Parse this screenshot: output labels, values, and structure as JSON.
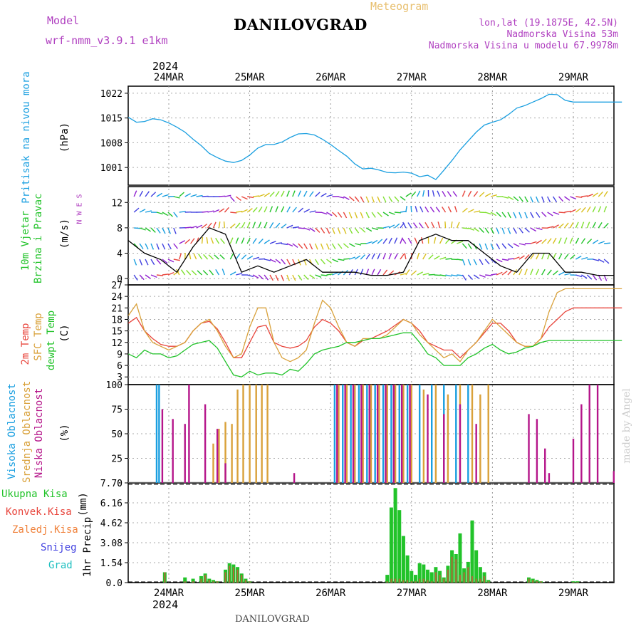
{
  "header": {
    "model_label": "Model",
    "model_name": "wrf-nmm_v3.9.1 e1km",
    "title": "DANILOVGRAD",
    "subtitle": "Meteogram",
    "lonlat": "lon,lat (19.1875E, 42.5N)",
    "altitude": "Nadmorska Visina 53m",
    "model_altitude": "Nadmorska Visina u modelu 67.9978m",
    "footer": "DANILOVGRAD",
    "credit": "made by Angel",
    "year_top": "2024",
    "year_bottom": "2024"
  },
  "colors": {
    "pressure": "#1a9fe0",
    "temp2m": "#e8453c",
    "sfctemp": "#d9a13a",
    "dewpt": "#22c32a",
    "cloud_high": "#1a9fe0",
    "cloud_mid": "#d9a13a",
    "cloud_low": "#b5158a",
    "precip_total": "#22c32a",
    "precip_conv": "#e8453c",
    "precip_frozen": "#f0813a",
    "precip_snow": "#4040e0",
    "precip_grad": "#20c0c0",
    "wind_label": "#22c32a",
    "wind_dir_label": "#b040c0"
  },
  "chart_data": [
    {
      "type": "line",
      "name": "pressure",
      "ylabel": "Pritisak na nivou mora",
      "unit": "(hPa)",
      "yticks": [
        1001,
        1008,
        1015,
        1022
      ],
      "ylim": [
        996,
        1024
      ],
      "x_days": [
        "24MAR",
        "25MAR",
        "26MAR",
        "27MAR",
        "28MAR",
        "29MAR"
      ],
      "x": [
        -0.5,
        -0.4,
        -0.3,
        -0.2,
        -0.1,
        0,
        0.1,
        0.2,
        0.3,
        0.4,
        0.5,
        0.6,
        0.7,
        0.8,
        0.9,
        1,
        1.1,
        1.2,
        1.3,
        1.4,
        1.5,
        1.6,
        1.7,
        1.8,
        1.9,
        2,
        2.1,
        2.2,
        2.3,
        2.4,
        2.5,
        2.6,
        2.7,
        2.8,
        2.9,
        3,
        3.1,
        3.2,
        3.3,
        3.4,
        3.5,
        3.6,
        3.7,
        3.8,
        3.9,
        4,
        4.1,
        4.2,
        4.3,
        4.4,
        4.5,
        4.6,
        4.7,
        4.8,
        4.9,
        5,
        5.1,
        5.2,
        5.3,
        5.4,
        5.5,
        5.6
      ],
      "values": [
        1015.2,
        1013.8,
        1014.0,
        1014.8,
        1014.5,
        1013.6,
        1012.4,
        1011.0,
        1009.0,
        1007.2,
        1005.0,
        1003.8,
        1002.8,
        1002.4,
        1003.0,
        1004.5,
        1006.5,
        1007.5,
        1007.5,
        1008.2,
        1009.5,
        1010.5,
        1010.6,
        1010.2,
        1009.0,
        1007.5,
        1005.8,
        1004.2,
        1002.0,
        1000.6,
        1000.8,
        1000.3,
        999.6,
        999.5,
        999.7,
        999.4,
        998.4,
        998.8,
        997.6,
        1000.2,
        1003.0,
        1006.0,
        1008.5,
        1011.0,
        1013.0,
        1013.8,
        1014.5,
        1016.0,
        1017.8,
        1018.5,
        1019.5,
        1020.5,
        1021.7,
        1021.6,
        1020.0,
        1019.5,
        1019.5,
        1019.5,
        1019.5,
        1019.5,
        1019.5,
        1019.5
      ]
    },
    {
      "type": "line",
      "name": "wind",
      "ylabel": "10m Vjetar",
      "ylabel2": "Brzina i Pravac",
      "unit": "(m/s)",
      "compass": "N W E S",
      "yticks": [
        0,
        4,
        8,
        12
      ],
      "ylim": [
        -1,
        14.5
      ],
      "x": [
        -0.5,
        -0.3,
        -0.1,
        0.1,
        0.3,
        0.5,
        0.7,
        0.9,
        1.1,
        1.3,
        1.5,
        1.7,
        1.9,
        2.1,
        2.3,
        2.5,
        2.7,
        2.9,
        3.1,
        3.3,
        3.5,
        3.7,
        3.9,
        4.1,
        4.3,
        4.5,
        4.7,
        4.9,
        5.1,
        5.3,
        5.5
      ],
      "values": [
        6,
        4,
        3,
        1,
        5,
        8,
        7,
        1,
        2,
        1,
        2,
        3,
        1,
        1,
        1,
        0.5,
        0.5,
        1,
        6,
        7,
        6,
        6,
        4,
        2,
        1,
        4,
        4,
        1,
        1,
        0.5,
        0.5
      ]
    },
    {
      "type": "line",
      "name": "temperature",
      "ylabel": "2m Temp",
      "ylabel2": "SFC Temp",
      "ylabel3": "dewpt Temp",
      "unit": "(C)",
      "yticks": [
        3,
        6,
        9,
        12,
        15,
        18,
        21,
        24,
        27
      ],
      "ylim": [
        1,
        27
      ],
      "x": [
        -0.5,
        -0.4,
        -0.3,
        -0.2,
        -0.1,
        0,
        0.1,
        0.2,
        0.3,
        0.4,
        0.5,
        0.6,
        0.7,
        0.8,
        0.9,
        1,
        1.1,
        1.2,
        1.3,
        1.4,
        1.5,
        1.6,
        1.7,
        1.8,
        1.9,
        2,
        2.1,
        2.2,
        2.3,
        2.4,
        2.5,
        2.6,
        2.7,
        2.8,
        2.9,
        3,
        3.1,
        3.2,
        3.3,
        3.4,
        3.5,
        3.6,
        3.7,
        3.8,
        3.9,
        4,
        4.1,
        4.2,
        4.3,
        4.4,
        4.5,
        4.6,
        4.7,
        4.8,
        4.9,
        5,
        5.1,
        5.2,
        5.3,
        5.4,
        5.5,
        5.6
      ],
      "series": [
        {
          "name": "2m Temp",
          "values": [
            17,
            18.5,
            15,
            13,
            11.5,
            11,
            11,
            12,
            15,
            17,
            17.5,
            15.5,
            12,
            8,
            8,
            12,
            16,
            16.5,
            12,
            11,
            10.5,
            11,
            12.5,
            16,
            18,
            17,
            15,
            12,
            11,
            12.5,
            13,
            14,
            15,
            16.5,
            18,
            17,
            15,
            12,
            11,
            10,
            10,
            8,
            10,
            12,
            14.5,
            17,
            17,
            15,
            12,
            11,
            11,
            13,
            16,
            18,
            20,
            21,
            21,
            21,
            21,
            21,
            21,
            21
          ]
        },
        {
          "name": "SFC Temp",
          "values": [
            19,
            22,
            15,
            12,
            11,
            10,
            11,
            12,
            15,
            17,
            18,
            15,
            11,
            8,
            9,
            16,
            21,
            21,
            12,
            8,
            7,
            8,
            10,
            17,
            23,
            21,
            16,
            12,
            11,
            13,
            13,
            13,
            14,
            16,
            18,
            17,
            14,
            12,
            10,
            8,
            9,
            7,
            10,
            12,
            15,
            18,
            16,
            14,
            12,
            11,
            11,
            13,
            20,
            25,
            26,
            26,
            26,
            26,
            26,
            26,
            26,
            26
          ]
        },
        {
          "name": "dewpt Temp",
          "values": [
            9,
            8,
            10,
            9,
            9,
            8,
            8.5,
            10,
            11.5,
            12,
            12.5,
            10.5,
            7,
            3.5,
            3,
            4.5,
            3.5,
            4,
            4,
            3.5,
            5,
            4.5,
            6.5,
            9,
            10,
            10.5,
            11,
            12,
            12,
            12.5,
            13,
            13,
            13.5,
            14,
            14.5,
            14.5,
            12,
            9,
            8,
            6,
            6,
            6,
            8,
            9,
            10.5,
            11.5,
            10,
            9,
            9.5,
            10.5,
            11,
            12,
            12.5,
            12.5,
            12.5,
            12.5,
            12.5,
            12.5,
            12.5,
            12.5,
            12.5,
            12.5
          ]
        }
      ]
    },
    {
      "type": "bar",
      "name": "clouds",
      "ylabel": "Visoka Oblacnost",
      "ylabel2": "Srednja Oblacnost",
      "ylabel3": "Niska Oblacnost",
      "unit": "(%)",
      "yticks": [
        0,
        25,
        50,
        75,
        100
      ],
      "ylim": [
        0,
        100
      ],
      "series": [
        {
          "name": "Visoka Oblacnost",
          "x": [
            -0.15,
            -0.12,
            2.05,
            2.15,
            2.25,
            2.35,
            2.45,
            2.55,
            2.65,
            2.75,
            2.85,
            2.95,
            3.1,
            3.25,
            3.4,
            3.55,
            3.7
          ],
          "values": [
            100,
            100,
            100,
            100,
            100,
            100,
            100,
            100,
            100,
            100,
            100,
            100,
            100,
            100,
            100,
            100,
            100
          ]
        },
        {
          "name": "Srednja Oblacnost",
          "x": [
            0.55,
            0.62,
            0.7,
            0.78,
            0.85,
            0.92,
            1.0,
            1.08,
            1.15,
            1.22,
            2.1,
            2.2,
            2.3,
            2.4,
            2.5,
            2.6,
            2.7,
            2.8,
            2.9,
            3.0,
            3.15,
            3.3,
            3.45,
            3.6,
            3.75,
            3.85,
            3.95
          ],
          "values": [
            40,
            55,
            62,
            60,
            95,
            100,
            100,
            100,
            100,
            100,
            100,
            100,
            100,
            100,
            100,
            100,
            100,
            100,
            100,
            100,
            95,
            100,
            90,
            100,
            100,
            90,
            100
          ]
        },
        {
          "name": "Niska Oblacnost",
          "x": [
            -0.08,
            0.05,
            0.2,
            0.25,
            0.45,
            0.6,
            0.7,
            1.55,
            2.08,
            2.18,
            2.28,
            2.38,
            2.48,
            2.58,
            2.68,
            2.78,
            2.88,
            2.98,
            3.2,
            3.4,
            3.6,
            3.8,
            4.45,
            4.55,
            4.65,
            4.7,
            5.0,
            5.1,
            5.2,
            5.3,
            5.5
          ],
          "values": [
            75,
            65,
            60,
            100,
            80,
            55,
            20,
            10,
            100,
            100,
            100,
            100,
            100,
            100,
            100,
            100,
            100,
            100,
            90,
            70,
            80,
            60,
            70,
            65,
            35,
            10,
            45,
            80,
            100,
            100,
            12
          ]
        }
      ]
    },
    {
      "type": "bar",
      "name": "precip",
      "ylabel": "1hr Precip",
      "unit": "(mm)",
      "labels": [
        "Ukupna Kisa",
        "Konvek.Kisa",
        "Zaledj.Kisa",
        "Snijeg",
        "Grad"
      ],
      "yticks": [
        0,
        1.54,
        3.08,
        4.62,
        6.16,
        7.7
      ],
      "ylim": [
        0,
        7.7
      ],
      "x": [
        -0.05,
        0.2,
        0.3,
        0.4,
        0.45,
        0.5,
        0.55,
        0.6,
        0.7,
        0.75,
        0.8,
        0.85,
        0.9,
        0.95,
        1.0,
        2.7,
        2.75,
        2.8,
        2.85,
        2.9,
        2.95,
        3.0,
        3.05,
        3.1,
        3.15,
        3.2,
        3.25,
        3.3,
        3.35,
        3.4,
        3.45,
        3.5,
        3.55,
        3.6,
        3.65,
        3.7,
        3.75,
        3.8,
        3.85,
        3.9,
        3.95,
        4.45,
        4.5,
        4.55,
        4.6,
        5.0,
        5.05
      ],
      "values": [
        0.8,
        0.4,
        0.3,
        0.5,
        0.7,
        0.3,
        0.2,
        0.1,
        1.0,
        1.5,
        1.4,
        1.2,
        0.7,
        0.3,
        0.1,
        0.6,
        5.8,
        7.3,
        5.6,
        3.6,
        2.1,
        0.9,
        0.6,
        1.5,
        1.4,
        1.0,
        0.8,
        1.2,
        0.9,
        0.4,
        1.3,
        2.5,
        2.2,
        3.8,
        1.1,
        1.6,
        4.8,
        2.5,
        1.2,
        0.8,
        0.2,
        0.4,
        0.3,
        0.2,
        0.1,
        0.1,
        0.1
      ],
      "conv": [
        0.8,
        0.1,
        0.1,
        0.3,
        0.6,
        0.2,
        0.1,
        0.1,
        0.8,
        1.3,
        1.2,
        1.0,
        0.6,
        0.2,
        0.1,
        0.1,
        0.3,
        0.3,
        0.3,
        0.2,
        0.2,
        0.1,
        0.1,
        0.3,
        0.3,
        0.2,
        0.1,
        0.8,
        0.6,
        0.3,
        1.0,
        2.0,
        1.8,
        0.6,
        0.8,
        1.2,
        0.5,
        0.3,
        0.3,
        0.5,
        0.1,
        0.3,
        0.2,
        0.1,
        0.1,
        0.05,
        0.05
      ]
    }
  ]
}
